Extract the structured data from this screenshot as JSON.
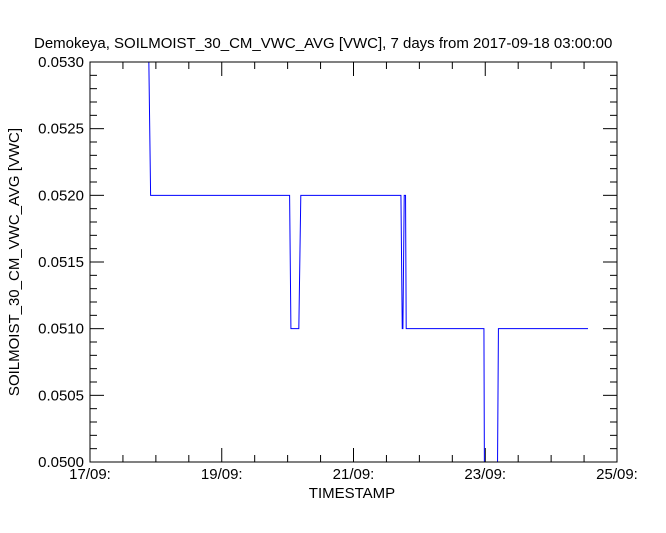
{
  "chart_data": {
    "type": "line",
    "title": "Demokeya, SOILMOIST_30_CM_VWC_AVG [VWC], 7 days from  2017-09-18 03:00:00",
    "xlabel": "TIMESTAMP",
    "ylabel": "SOILMOIST_30_CM_VWC_AVG [VWC]",
    "x_unit": "days since 17/09 00:00",
    "xlim": [
      0,
      8
    ],
    "ylim": [
      0.05,
      0.053
    ],
    "x_ticks": [
      {
        "v": 0,
        "label": "17/09:"
      },
      {
        "v": 2,
        "label": "19/09:"
      },
      {
        "v": 4,
        "label": "21/09:"
      },
      {
        "v": 6,
        "label": "23/09:"
      },
      {
        "v": 8,
        "label": "25/09:"
      }
    ],
    "y_ticks": [
      {
        "v": 0.05,
        "label": "0.0500"
      },
      {
        "v": 0.0505,
        "label": "0.0505"
      },
      {
        "v": 0.051,
        "label": "0.0510"
      },
      {
        "v": 0.0515,
        "label": "0.0515"
      },
      {
        "v": 0.052,
        "label": "0.0520"
      },
      {
        "v": 0.0525,
        "label": "0.0525"
      },
      {
        "v": 0.053,
        "label": "0.0530"
      }
    ],
    "series": [
      {
        "name": "SOILMOIST_30_CM_VWC_AVG",
        "color": "#0000ff",
        "x": [
          0.88,
          0.92,
          3.03,
          3.05,
          3.17,
          3.2,
          4.72,
          4.74,
          4.75,
          4.77,
          4.79,
          4.8,
          5.98,
          5.99,
          6.18,
          6.2,
          7.56
        ],
        "y": [
          0.0535,
          0.052,
          0.052,
          0.051,
          0.051,
          0.052,
          0.052,
          0.051,
          0.051,
          0.052,
          0.052,
          0.051,
          0.051,
          0.0495,
          0.0495,
          0.051,
          0.051
        ]
      }
    ]
  }
}
